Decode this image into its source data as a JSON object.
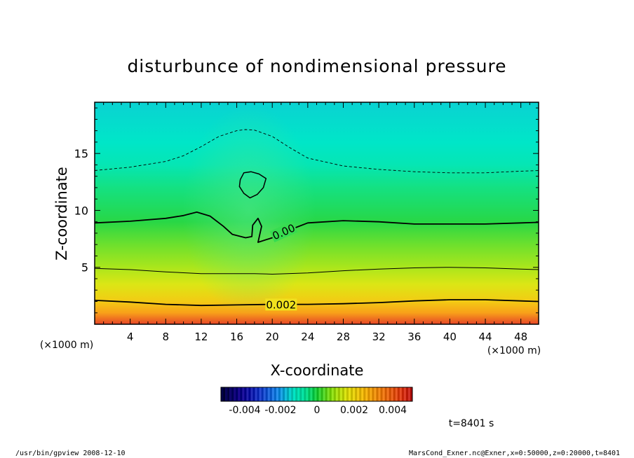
{
  "chart_data": {
    "type": "heatmap",
    "title": "disturbunce of nondimensional pressure",
    "xlabel": "X-coordinate",
    "ylabel": "Z-coordinate",
    "x_unit": "(×1000 m)",
    "y_unit": "(×1000 m)",
    "xlim": [
      0,
      50
    ],
    "ylim": [
      0,
      19.5
    ],
    "xticks": [
      4,
      8,
      12,
      16,
      20,
      24,
      28,
      32,
      36,
      40,
      44,
      48
    ],
    "yticks": [
      5,
      10,
      15
    ],
    "grid": false,
    "colorbar": {
      "range": [
        -0.005,
        0.005
      ],
      "tick_labels": [
        "-0.004",
        "-0.002",
        "0",
        "0.002",
        "0.004"
      ],
      "tick_values": [
        -0.004,
        -0.002,
        0,
        0.002,
        0.004
      ]
    },
    "contours": [
      {
        "level": 0.002,
        "label": "0.002",
        "style": "solid-thick",
        "points": [
          [
            0,
            2.1
          ],
          [
            4,
            1.95
          ],
          [
            8,
            1.75
          ],
          [
            12,
            1.65
          ],
          [
            16,
            1.7
          ],
          [
            20,
            1.75
          ],
          [
            24,
            1.75
          ],
          [
            28,
            1.8
          ],
          [
            32,
            1.9
          ],
          [
            36,
            2.05
          ],
          [
            40,
            2.15
          ],
          [
            44,
            2.15
          ],
          [
            48,
            2.05
          ],
          [
            50,
            2.0
          ]
        ]
      },
      {
        "level": 0.001,
        "label": "",
        "style": "solid-thin",
        "points": [
          [
            0,
            4.9
          ],
          [
            4,
            4.8
          ],
          [
            8,
            4.6
          ],
          [
            12,
            4.45
          ],
          [
            16,
            4.45
          ],
          [
            18,
            4.45
          ],
          [
            20,
            4.4
          ],
          [
            24,
            4.5
          ],
          [
            28,
            4.7
          ],
          [
            32,
            4.85
          ],
          [
            36,
            4.95
          ],
          [
            40,
            5.0
          ],
          [
            44,
            4.95
          ],
          [
            48,
            4.85
          ],
          [
            50,
            4.8
          ]
        ]
      },
      {
        "level": 0.0,
        "label": "0.00",
        "style": "solid-thick",
        "points": [
          [
            0,
            8.9
          ],
          [
            4,
            9.05
          ],
          [
            8,
            9.3
          ],
          [
            10,
            9.55
          ],
          [
            11.5,
            9.85
          ],
          [
            13,
            9.5
          ],
          [
            14.5,
            8.6
          ],
          [
            15.5,
            7.9
          ],
          [
            17,
            7.6
          ],
          [
            17.7,
            7.7
          ],
          [
            17.8,
            8.7
          ],
          [
            18.4,
            9.3
          ],
          [
            18.8,
            8.6
          ],
          [
            18.4,
            7.2
          ],
          [
            20,
            7.6
          ],
          [
            22,
            8.3
          ],
          [
            24,
            8.9
          ],
          [
            28,
            9.1
          ],
          [
            32,
            9.0
          ],
          [
            36,
            8.8
          ],
          [
            40,
            8.8
          ],
          [
            44,
            8.8
          ],
          [
            48,
            8.9
          ],
          [
            50,
            8.95
          ]
        ]
      },
      {
        "level": 0.0,
        "label": "",
        "style": "solid-closed",
        "points": [
          [
            16.4,
            12.7
          ],
          [
            16.8,
            13.3
          ],
          [
            17.6,
            13.4
          ],
          [
            18.5,
            13.2
          ],
          [
            19.3,
            12.8
          ],
          [
            19.0,
            12.0
          ],
          [
            18.3,
            11.4
          ],
          [
            17.5,
            11.1
          ],
          [
            16.8,
            11.5
          ],
          [
            16.3,
            12.1
          ],
          [
            16.4,
            12.7
          ]
        ]
      },
      {
        "level": -0.001,
        "label": "",
        "style": "dashed",
        "points": [
          [
            0,
            13.5
          ],
          [
            4,
            13.8
          ],
          [
            8,
            14.3
          ],
          [
            10,
            14.8
          ],
          [
            12,
            15.6
          ],
          [
            14,
            16.5
          ],
          [
            16,
            17.0
          ],
          [
            17,
            17.1
          ],
          [
            18,
            17.05
          ],
          [
            20,
            16.5
          ],
          [
            22,
            15.5
          ],
          [
            24,
            14.6
          ],
          [
            28,
            13.9
          ],
          [
            32,
            13.6
          ],
          [
            36,
            13.4
          ],
          [
            40,
            13.3
          ],
          [
            44,
            13.3
          ],
          [
            48,
            13.45
          ],
          [
            50,
            13.5
          ]
        ]
      }
    ],
    "field_levels": [
      {
        "z": 0,
        "value": 0.0045
      },
      {
        "z": 1,
        "value": 0.003
      },
      {
        "z": 2,
        "value": 0.0022
      },
      {
        "z": 3.5,
        "value": 0.0015
      },
      {
        "z": 5,
        "value": 0.001
      },
      {
        "z": 7,
        "value": 0.0005
      },
      {
        "z": 9,
        "value": 0.0
      },
      {
        "z": 12,
        "value": -0.0004
      },
      {
        "z": 14,
        "value": -0.0009
      },
      {
        "z": 16,
        "value": -0.0012
      },
      {
        "z": 19.5,
        "value": -0.0014
      }
    ]
  },
  "time_label": "t=8401 s",
  "footer": {
    "left": "/usr/bin/gpview   2008-12-10",
    "right": "MarsCond_Exner.nc@Exner,x=0:50000,z=0:20000,t=8401"
  }
}
